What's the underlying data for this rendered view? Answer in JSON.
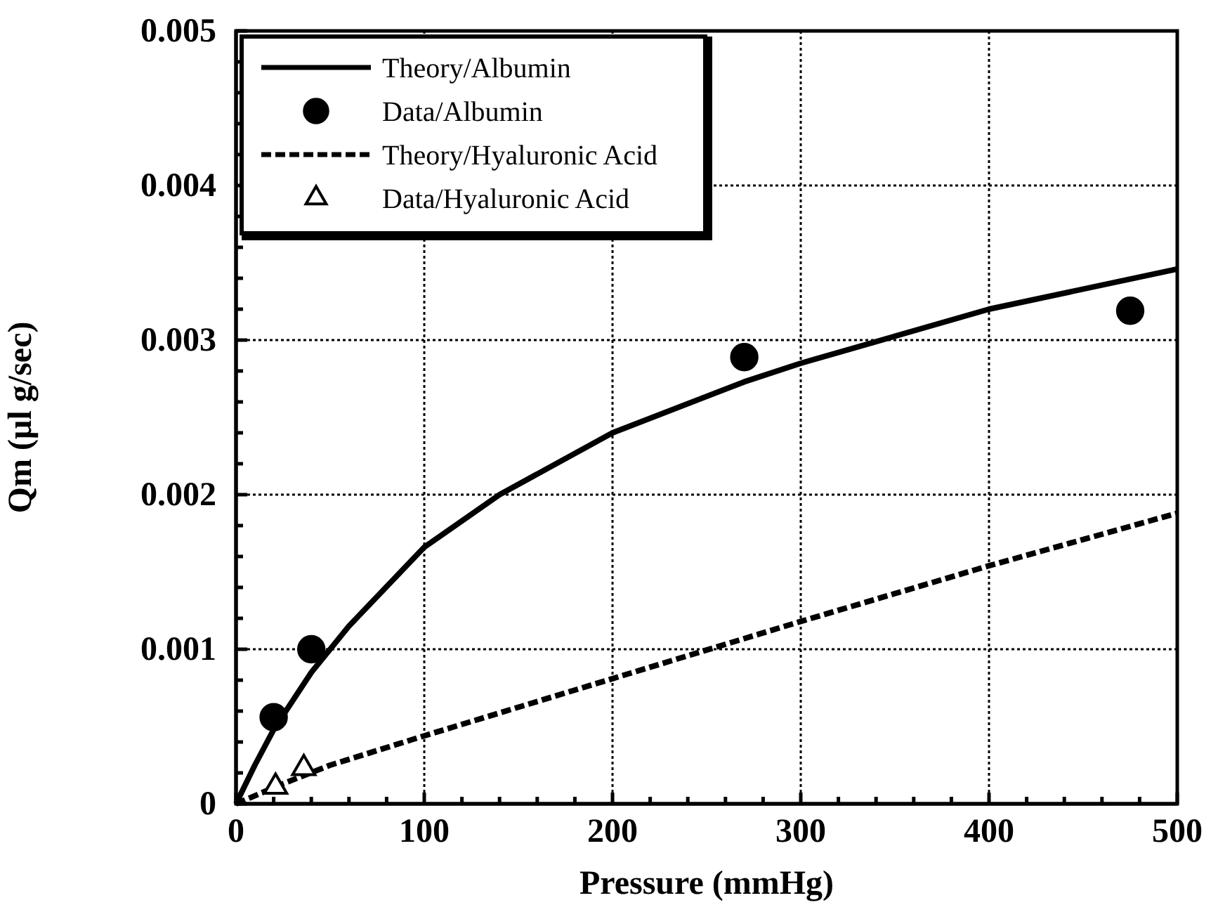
{
  "chart_data": {
    "type": "line",
    "xlabel": "Pressure (mmHg)",
    "ylabel": "Qm (µl g/sec)",
    "xlim": [
      0,
      500
    ],
    "ylim": [
      0,
      0.005
    ],
    "xticks": [
      0,
      {
        "value": 20,
        "label": null
      },
      {
        "value": 40,
        "label": null
      },
      {
        "value": 60,
        "label": null
      },
      {
        "value": 80,
        "label": null
      },
      100,
      {
        "value": 120,
        "label": null
      },
      {
        "value": 140,
        "label": null
      },
      {
        "value": 160,
        "label": null
      },
      {
        "value": 180,
        "label": null
      },
      200,
      {
        "value": 220,
        "label": null
      },
      {
        "value": 240,
        "label": null
      },
      {
        "value": 260,
        "label": null
      },
      {
        "value": 280,
        "label": null
      },
      300,
      {
        "value": 320,
        "label": null
      },
      {
        "value": 340,
        "label": null
      },
      {
        "value": 360,
        "label": null
      },
      {
        "value": 380,
        "label": null
      },
      400,
      {
        "value": 420,
        "label": null
      },
      {
        "value": 440,
        "label": null
      },
      {
        "value": 460,
        "label": null
      },
      {
        "value": 480,
        "label": null
      },
      500
    ],
    "yticks": [
      0,
      {
        "value": 0.0002,
        "label": null
      },
      {
        "value": 0.0004,
        "label": null
      },
      {
        "value": 0.0006,
        "label": null
      },
      {
        "value": 0.0008,
        "label": null
      },
      0.001,
      {
        "value": 0.0012,
        "label": null
      },
      {
        "value": 0.0014,
        "label": null
      },
      {
        "value": 0.0016,
        "label": null
      },
      {
        "value": 0.0018,
        "label": null
      },
      0.002,
      {
        "value": 0.0022,
        "label": null
      },
      {
        "value": 0.0024,
        "label": null
      },
      {
        "value": 0.0026,
        "label": null
      },
      {
        "value": 0.0028,
        "label": null
      },
      0.003,
      {
        "value": 0.0032,
        "label": null
      },
      {
        "value": 0.0034,
        "label": null
      },
      {
        "value": 0.0036,
        "label": null
      },
      {
        "value": 0.0038,
        "label": null
      },
      0.004,
      {
        "value": 0.0042,
        "label": null
      },
      {
        "value": 0.0044,
        "label": null
      },
      {
        "value": 0.0046,
        "label": null
      },
      {
        "value": 0.0048,
        "label": null
      },
      0.005
    ],
    "grid": true,
    "legend": "top left",
    "series": [
      {
        "name": "Theory/Albumin",
        "color": "#000000",
        "line_style": "solid",
        "marker": "none",
        "x": [
          0,
          10,
          20,
          40,
          60,
          100,
          140,
          200,
          270,
          300,
          400,
          500
        ],
        "values": [
          0,
          0.00025,
          0.00048,
          0.00085,
          0.00115,
          0.00166,
          0.002,
          0.0024,
          0.00273,
          0.00285,
          0.0032,
          0.00346
        ]
      },
      {
        "name": "Data/Albumin",
        "type": "scatter",
        "color": "#000000",
        "marker": "circle",
        "x": [
          20,
          40,
          270,
          475
        ],
        "values": [
          0.00056,
          0.001,
          0.00289,
          0.00319
        ]
      },
      {
        "name": "Theory/Hyaluronic Acid",
        "color": "#000000",
        "line_style": "dashed",
        "marker": "none",
        "x": [
          0,
          25,
          50,
          100,
          200,
          300,
          400,
          500
        ],
        "values": [
          0,
          0.00013,
          0.00025,
          0.00044,
          0.00081,
          0.00118,
          0.00154,
          0.00188
        ]
      },
      {
        "name": "Data/Hyaluronic Acid",
        "type": "scatter",
        "color": "#000000",
        "marker": "triangle",
        "x": [
          21,
          36
        ],
        "values": [
          0.00011,
          0.00023
        ]
      }
    ]
  }
}
